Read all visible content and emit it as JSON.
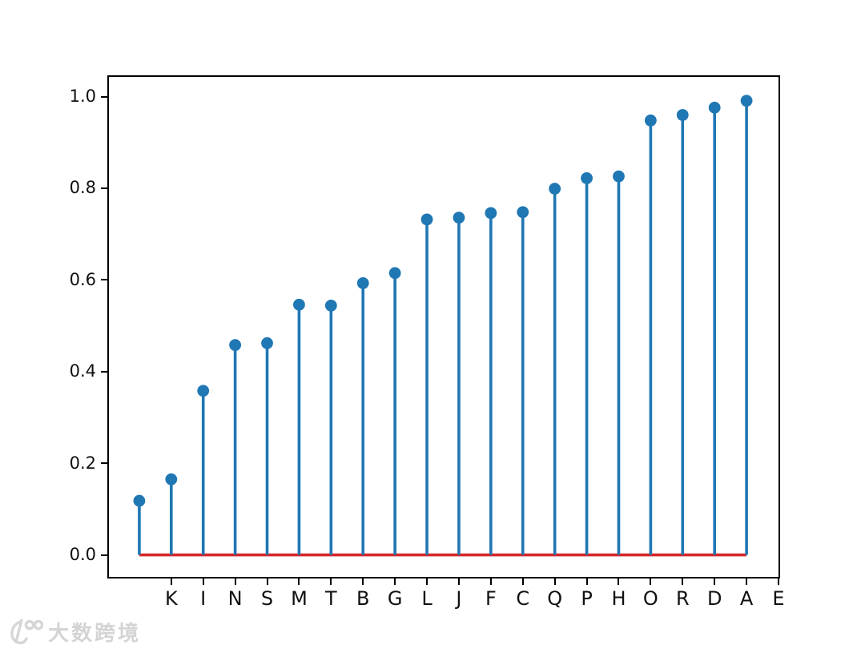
{
  "chart_data": {
    "type": "stem",
    "title": "",
    "xlabel": "",
    "ylabel": "",
    "grid": false,
    "legend": null,
    "stem_color": "#1f77b4",
    "marker": "circle",
    "marker_color": "#1f77b4",
    "baseline": {
      "y": 0.0,
      "x_start": 0,
      "x_end": 19,
      "color": "#d62728"
    },
    "stems": {
      "x": [
        0,
        1,
        2,
        3,
        4,
        5,
        6,
        7,
        8,
        9,
        10,
        11,
        12,
        13,
        14,
        15,
        16,
        17,
        18,
        19
      ],
      "values": [
        0.118,
        0.165,
        0.358,
        0.458,
        0.462,
        0.546,
        0.544,
        0.593,
        0.615,
        0.732,
        0.736,
        0.746,
        0.748,
        0.799,
        0.822,
        0.826,
        0.948,
        0.96,
        0.976,
        0.991
      ]
    },
    "x_tick_positions": [
      1,
      2,
      3,
      4,
      5,
      6,
      7,
      8,
      9,
      10,
      11,
      12,
      13,
      14,
      15,
      16,
      17,
      18,
      19,
      20
    ],
    "x_tick_labels": [
      "K",
      "I",
      "N",
      "S",
      "M",
      "T",
      "B",
      "G",
      "L",
      "J",
      "F",
      "C",
      "Q",
      "P",
      "H",
      "O",
      "R",
      "D",
      "A",
      "E"
    ],
    "y_tick_values": [
      0.0,
      0.2,
      0.4,
      0.6,
      0.8,
      1.0
    ],
    "y_tick_labels": [
      "0.0",
      "0.2",
      "0.4",
      "0.6",
      "0.8",
      "1.0"
    ],
    "xlim": [
      -0.95,
      20.0
    ],
    "ylim": [
      -0.048,
      1.043
    ]
  },
  "watermark": {
    "icon": "10-100-swirl-logo-icon",
    "text": "大数跨境"
  }
}
